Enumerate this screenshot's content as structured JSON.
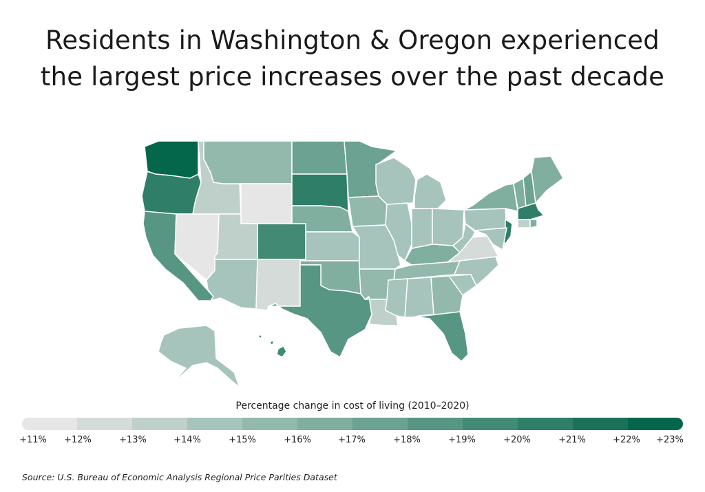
{
  "title_lines": [
    "Residents in Washington & Oregon experienced",
    "the largest price increases over the past decade"
  ],
  "legend": {
    "caption": "Percentage change in cost of living (2010–2020)",
    "tick_labels": [
      "+11%",
      "+12%",
      "+13%",
      "+14%",
      "+15%",
      "+16%",
      "+17%",
      "+18%",
      "+19%",
      "+20%",
      "+21%",
      "+22%",
      "+23%"
    ],
    "colors": [
      "#e6e6e6",
      "#d4dbd9",
      "#bfd0cb",
      "#a6c4bb",
      "#93b9ad",
      "#80ae9f",
      "#6ba291",
      "#579683",
      "#438a75",
      "#2f7e67",
      "#1b7258",
      "#04664a"
    ]
  },
  "states": [
    {
      "name": "Washington",
      "color": "#04664a"
    },
    {
      "name": "Oregon",
      "color": "#2f7e67"
    },
    {
      "name": "California",
      "color": "#579683"
    },
    {
      "name": "Nevada",
      "color": "#e6e6e6"
    },
    {
      "name": "Idaho",
      "color": "#bfd0cb"
    },
    {
      "name": "Montana",
      "color": "#93b9ad"
    },
    {
      "name": "Wyoming",
      "color": "#e6e6e6"
    },
    {
      "name": "Utah",
      "color": "#bfd0cb"
    },
    {
      "name": "Arizona",
      "color": "#a6c4bb"
    },
    {
      "name": "Colorado",
      "color": "#438a75"
    },
    {
      "name": "New Mexico",
      "color": "#d4dbd9"
    },
    {
      "name": "North Dakota",
      "color": "#6ba291"
    },
    {
      "name": "South Dakota",
      "color": "#2f7e67"
    },
    {
      "name": "Nebraska",
      "color": "#80ae9f"
    },
    {
      "name": "Kansas",
      "color": "#a6c4bb"
    },
    {
      "name": "Oklahoma",
      "color": "#80ae9f"
    },
    {
      "name": "Texas",
      "color": "#579683"
    },
    {
      "name": "Minnesota",
      "color": "#6ba291"
    },
    {
      "name": "Iowa",
      "color": "#93b9ad"
    },
    {
      "name": "Missouri",
      "color": "#a6c4bb"
    },
    {
      "name": "Arkansas",
      "color": "#93b9ad"
    },
    {
      "name": "Louisiana",
      "color": "#bfd0cb"
    },
    {
      "name": "Wisconsin",
      "color": "#a6c4bb"
    },
    {
      "name": "Illinois",
      "color": "#a6c4bb"
    },
    {
      "name": "Michigan",
      "color": "#a6c4bb"
    },
    {
      "name": "Indiana",
      "color": "#a6c4bb"
    },
    {
      "name": "Ohio",
      "color": "#a6c4bb"
    },
    {
      "name": "Kentucky",
      "color": "#80ae9f"
    },
    {
      "name": "Tennessee",
      "color": "#93b9ad"
    },
    {
      "name": "Mississippi",
      "color": "#a6c4bb"
    },
    {
      "name": "Alabama",
      "color": "#a6c4bb"
    },
    {
      "name": "Georgia",
      "color": "#93b9ad"
    },
    {
      "name": "Florida",
      "color": "#579683"
    },
    {
      "name": "South Carolina",
      "color": "#a6c4bb"
    },
    {
      "name": "North Carolina",
      "color": "#a6c4bb"
    },
    {
      "name": "Virginia",
      "color": "#d4dbd9"
    },
    {
      "name": "West Virginia",
      "color": "#a6c4bb"
    },
    {
      "name": "Pennsylvania",
      "color": "#a6c4bb"
    },
    {
      "name": "New York",
      "color": "#80ae9f"
    },
    {
      "name": "Vermont",
      "color": "#80ae9f"
    },
    {
      "name": "New Hampshire",
      "color": "#6ba291"
    },
    {
      "name": "Maine",
      "color": "#80ae9f"
    },
    {
      "name": "Massachusetts",
      "color": "#2f7e67"
    },
    {
      "name": "Connecticut",
      "color": "#bfd0cb"
    },
    {
      "name": "Rhode Island",
      "color": "#80ae9f"
    },
    {
      "name": "New Jersey",
      "color": "#2f7e67"
    },
    {
      "name": "Delaware",
      "color": "#bfd0cb"
    },
    {
      "name": "Maryland",
      "color": "#a6c4bb"
    },
    {
      "name": "Alaska",
      "color": "#a6c4bb"
    },
    {
      "name": "Hawaii",
      "color": "#438a75"
    }
  ],
  "source": "Source:  U.S. Bureau of Economic Analysis Regional Price Parities Dataset"
}
